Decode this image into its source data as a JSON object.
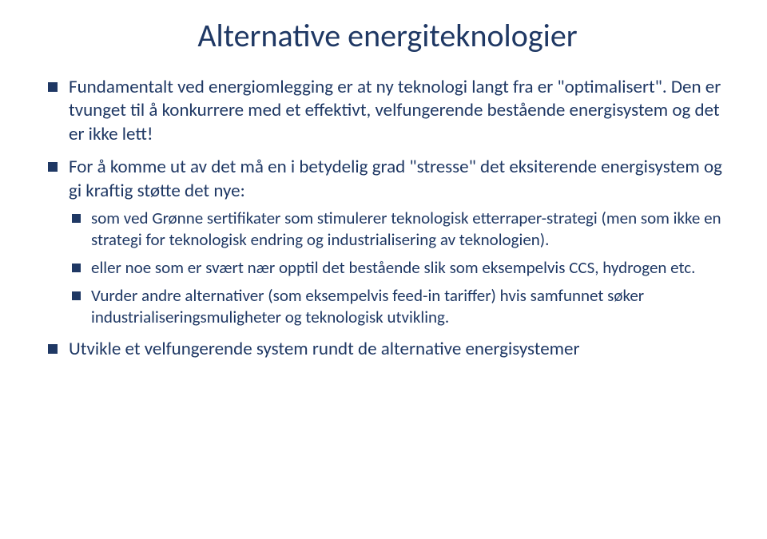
{
  "title": "Alternative energiteknologier",
  "bullets": [
    {
      "text": "Fundamentalt ved energiomlegging er at ny teknologi langt fra er \"optimalisert\". Den er tvunget til å konkurrere med et effektivt, velfungerende bestående energisystem og det er ikke lett!"
    },
    {
      "text": "For å komme ut av det må en i betydelig grad \"stresse\" det eksiterende energisystem og gi kraftig støtte det nye:",
      "children": [
        "som ved Grønne sertifikater som stimulerer teknologisk etterraper-strategi (men som ikke en strategi for teknologisk endring og industrialisering av teknologien).",
        "eller noe som er svært nær opptil det bestående slik som eksempelvis CCS, hydrogen etc.",
        "Vurder andre alternativer (som eksempelvis feed-in tariffer) hvis samfunnet søker industrialiseringsmuligheter og teknologisk utvikling."
      ]
    },
    {
      "text": "Utvikle et velfungerende system rundt de alternative energisystemer"
    }
  ],
  "colors": {
    "text": "#1f3864",
    "background": "#ffffff",
    "bullet": "#1f3864"
  },
  "fonts": {
    "title_size_pt": 40,
    "level1_size_pt": 23,
    "level2_size_pt": 21
  }
}
